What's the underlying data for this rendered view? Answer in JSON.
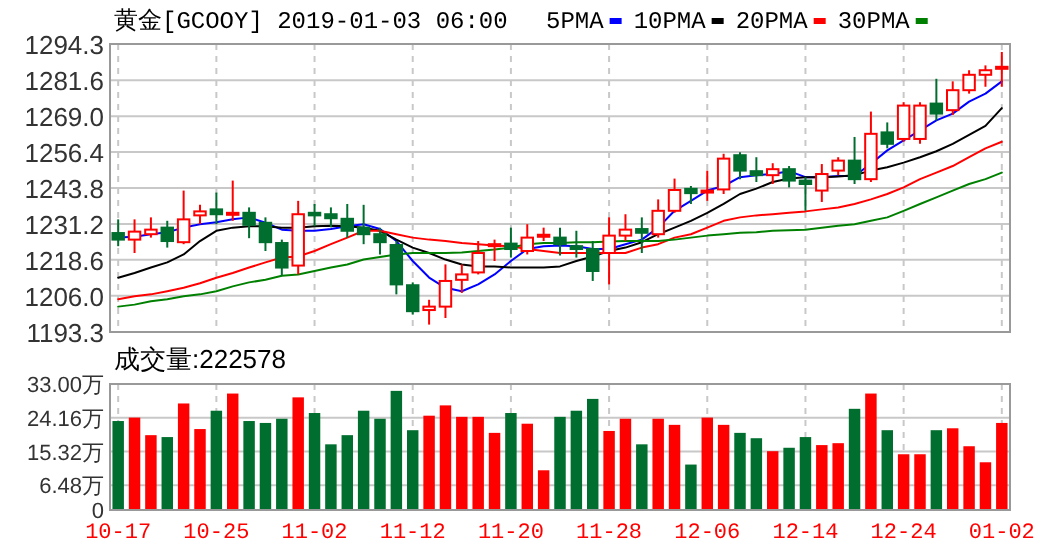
{
  "chart_data": [
    {
      "type": "candlestick",
      "title": "黄金[GCOOY] 2019-01-03 06:00",
      "legend": "top",
      "grid": true,
      "tick_labels": "y",
      "categories": [
        null,
        null,
        null,
        null,
        null,
        null,
        null,
        null,
        null,
        null,
        null,
        null,
        null,
        null,
        null,
        null,
        null,
        null,
        null,
        null,
        null,
        null,
        null,
        null,
        null,
        null,
        null,
        null,
        null,
        null,
        null,
        null,
        null,
        null,
        null,
        null,
        null,
        null,
        null,
        null,
        null,
        null,
        null,
        null,
        null,
        null,
        null,
        null,
        null,
        null,
        null,
        null,
        null,
        null,
        null
      ],
      "ohlc": [
        [
          1228.0,
          1232.8,
          1223.4,
          1225.7
        ],
        [
          1225.7,
          1232.8,
          1221.0,
          1228.5
        ],
        [
          1227.6,
          1233.5,
          1226.4,
          1229.2
        ],
        [
          1229.9,
          1232.3,
          1222.9,
          1225.2
        ],
        [
          1224.8,
          1242.9,
          1224.1,
          1232.8
        ],
        [
          1234.2,
          1237.9,
          1231.1,
          1235.6
        ],
        [
          1236.3,
          1242.2,
          1231.1,
          1234.6
        ],
        [
          1234.6,
          1246.4,
          1232.3,
          1235.1
        ],
        [
          1235.1,
          1237.0,
          1226.2,
          1230.9
        ],
        [
          1231.6,
          1233.5,
          1221.7,
          1224.8
        ],
        [
          1224.5,
          1225.7,
          1213.0,
          1215.9
        ],
        [
          1216.6,
          1239.3,
          1213.5,
          1234.6
        ],
        [
          1235.1,
          1238.2,
          1230.4,
          1234.2
        ],
        [
          1234.6,
          1237.0,
          1230.0,
          1233.2
        ],
        [
          1233.0,
          1238.2,
          1226.4,
          1228.8
        ],
        [
          1229.9,
          1237.9,
          1224.1,
          1227.6
        ],
        [
          1227.6,
          1229.9,
          1220.5,
          1224.8
        ],
        [
          1223.8,
          1225.2,
          1206.5,
          1210.0
        ],
        [
          1209.7,
          1210.7,
          1199.4,
          1200.6
        ],
        [
          1201.0,
          1204.6,
          1195.9,
          1202.2
        ],
        [
          1202.2,
          1217.0,
          1198.2,
          1211.2
        ],
        [
          1211.6,
          1217.0,
          1207.0,
          1213.5
        ],
        [
          1214.2,
          1225.2,
          1213.5,
          1221.0
        ],
        [
          1223.4,
          1225.7,
          1218.2,
          1224.1
        ],
        [
          1224.3,
          1229.9,
          1219.4,
          1222.4
        ],
        [
          1221.7,
          1231.1,
          1220.5,
          1226.4
        ],
        [
          1226.9,
          1229.9,
          1225.2,
          1227.4
        ],
        [
          1226.4,
          1229.9,
          1220.1,
          1224.1
        ],
        [
          1223.4,
          1228.8,
          1219.4,
          1222.4
        ],
        [
          1222.4,
          1225.2,
          1211.2,
          1214.7
        ],
        [
          1221.0,
          1233.5,
          1210.0,
          1227.1
        ],
        [
          1227.1,
          1234.6,
          1225.2,
          1229.2
        ],
        [
          1229.4,
          1233.5,
          1221.0,
          1228.1
        ],
        [
          1227.6,
          1239.8,
          1226.4,
          1235.8
        ],
        [
          1235.8,
          1247.1,
          1235.1,
          1243.1
        ],
        [
          1243.5,
          1244.5,
          1238.2,
          1242.0
        ],
        [
          1242.4,
          1249.9,
          1239.3,
          1242.9
        ],
        [
          1243.3,
          1255.8,
          1241.7,
          1254.1
        ],
        [
          1255.3,
          1256.3,
          1246.9,
          1249.9
        ],
        [
          1249.7,
          1254.6,
          1245.9,
          1248.3
        ],
        [
          1248.3,
          1252.5,
          1245.2,
          1250.4
        ],
        [
          1250.4,
          1251.5,
          1244.0,
          1246.4
        ],
        [
          1246.4,
          1247.6,
          1235.8,
          1245.2
        ],
        [
          1242.9,
          1252.2,
          1238.9,
          1248.7
        ],
        [
          1249.9,
          1254.6,
          1248.3,
          1253.4
        ],
        [
          1253.4,
          1261.7,
          1245.2,
          1246.9
        ],
        [
          1246.9,
          1270.6,
          1245.9,
          1262.8
        ],
        [
          1263.3,
          1266.8,
          1257.7,
          1259.3
        ],
        [
          1261.0,
          1273.9,
          1260.0,
          1272.7
        ],
        [
          1261.0,
          1273.9,
          1259.3,
          1272.7
        ],
        [
          1273.4,
          1282.1,
          1267.5,
          1269.9
        ],
        [
          1271.1,
          1281.2,
          1269.4,
          1278.1
        ],
        [
          1278.1,
          1285.1,
          1276.9,
          1283.5
        ],
        [
          1283.5,
          1286.8,
          1279.3,
          1285.1
        ],
        [
          1285.6,
          1291.5,
          1279.3,
          1286.3
        ]
      ],
      "series": [
        {
          "type": "line",
          "name": "5PMA",
          "color": "#0000ff",
          "values": [
            1226.4,
            1226.7,
            1227.6,
            1228.3,
            1229.9,
            1231.1,
            1231.8,
            1232.8,
            1233.5,
            1231.6,
            1229.2,
            1228.8,
            1228.8,
            1229.4,
            1230.4,
            1231.1,
            1229.4,
            1225.2,
            1218.2,
            1212.4,
            1208.8,
            1207.6,
            1210.0,
            1213.5,
            1218.2,
            1222.4,
            1223.4,
            1223.6,
            1223.4,
            1222.4,
            1222.4,
            1224.1,
            1225.7,
            1229.9,
            1235.8,
            1239.3,
            1242.9,
            1244.5,
            1247.6,
            1248.3,
            1248.7,
            1249.7,
            1247.6,
            1247.6,
            1248.0,
            1248.0,
            1252.3,
            1257.0,
            1260.5,
            1264.0,
            1267.5,
            1269.9,
            1274.1,
            1276.9,
            1281.2
          ]
        },
        {
          "type": "line",
          "name": "10PMA",
          "color": "#000000",
          "values": [
            1212.3,
            1214.0,
            1215.9,
            1217.7,
            1220.5,
            1225.2,
            1228.8,
            1229.9,
            1230.4,
            1230.4,
            1229.9,
            1229.9,
            1230.4,
            1230.6,
            1230.4,
            1229.9,
            1228.8,
            1225.7,
            1222.9,
            1221.0,
            1218.7,
            1217.0,
            1216.3,
            1216.3,
            1215.9,
            1215.9,
            1215.9,
            1216.3,
            1218.2,
            1219.8,
            1221.7,
            1222.9,
            1224.8,
            1227.6,
            1229.9,
            1232.3,
            1235.1,
            1238.2,
            1241.7,
            1243.6,
            1245.9,
            1247.1,
            1247.6,
            1247.6,
            1247.8,
            1248.3,
            1249.9,
            1251.1,
            1252.7,
            1254.6,
            1256.7,
            1259.3,
            1262.4,
            1265.6,
            1271.8
          ]
        },
        {
          "type": "line",
          "name": "20PMA",
          "color": "#ff0000",
          "values": [
            1204.8,
            1205.8,
            1206.5,
            1207.6,
            1208.8,
            1210.4,
            1212.3,
            1214.0,
            1215.9,
            1217.7,
            1219.4,
            1219.8,
            1221.7,
            1224.1,
            1226.4,
            1228.8,
            1228.8,
            1227.6,
            1226.4,
            1225.7,
            1225.2,
            1224.5,
            1224.1,
            1223.6,
            1223.4,
            1222.4,
            1221.7,
            1221.0,
            1221.0,
            1221.0,
            1221.0,
            1221.0,
            1222.9,
            1224.1,
            1226.4,
            1227.6,
            1229.9,
            1232.3,
            1233.5,
            1234.2,
            1234.6,
            1235.1,
            1235.6,
            1236.3,
            1237.0,
            1238.2,
            1239.8,
            1241.7,
            1244.0,
            1246.9,
            1249.2,
            1251.5,
            1254.6,
            1257.7,
            1260.0
          ]
        },
        {
          "type": "line",
          "name": "30PMA",
          "color": "#008000",
          "values": [
            1202.2,
            1202.9,
            1204.1,
            1204.8,
            1205.8,
            1206.5,
            1207.6,
            1209.3,
            1210.7,
            1211.6,
            1213.0,
            1213.5,
            1214.7,
            1215.9,
            1217.0,
            1218.7,
            1219.6,
            1220.5,
            1221.0,
            1221.0,
            1221.0,
            1221.2,
            1221.7,
            1222.2,
            1222.9,
            1224.1,
            1224.5,
            1224.5,
            1224.8,
            1224.8,
            1225.0,
            1225.2,
            1225.2,
            1225.2,
            1225.7,
            1226.4,
            1227.1,
            1227.6,
            1228.1,
            1228.3,
            1228.8,
            1229.0,
            1229.2,
            1229.9,
            1230.6,
            1231.1,
            1232.3,
            1233.5,
            1235.8,
            1238.2,
            1240.5,
            1242.9,
            1245.2,
            1246.9,
            1249.2
          ]
        }
      ],
      "ylim": [
        1193.3,
        1294.3
      ],
      "yticks": [
        {
          "value": 1193.3,
          "label": "1193.3"
        },
        {
          "value": 1206.0,
          "label": "1206.0"
        },
        {
          "value": 1218.6,
          "label": "1218.6"
        },
        {
          "value": 1231.2,
          "label": "1231.2"
        },
        {
          "value": 1243.8,
          "label": "1243.8"
        },
        {
          "value": 1256.4,
          "label": "1256.4"
        },
        {
          "value": 1269.0,
          "label": "1269.0"
        },
        {
          "value": 1281.6,
          "label": "1281.6"
        },
        {
          "value": 1294.3,
          "label": "1294.3"
        }
      ]
    },
    {
      "type": "bar",
      "title": "成交量:222578",
      "grid": true,
      "categories": [
        "10-17",
        null,
        null,
        null,
        null,
        null,
        "10-25",
        null,
        null,
        null,
        null,
        null,
        "11-02",
        null,
        null,
        null,
        null,
        null,
        "11-12",
        null,
        null,
        null,
        null,
        null,
        "11-20",
        null,
        null,
        null,
        null,
        null,
        "11-28",
        null,
        null,
        null,
        null,
        null,
        "12-06",
        null,
        null,
        null,
        null,
        null,
        "12-14",
        null,
        null,
        null,
        null,
        null,
        "12-24",
        null,
        null,
        null,
        null,
        null,
        "01-02"
      ],
      "values": [
        23.3,
        24.2,
        19.6,
        19.1,
        27.9,
        21.2,
        26.0,
        30.5,
        23.3,
        22.8,
        23.9,
        29.5,
        25.4,
        17.2,
        19.6,
        26.0,
        23.9,
        31.2,
        20.9,
        24.7,
        27.4,
        24.4,
        24.4,
        20.2,
        25.4,
        22.6,
        10.4,
        24.4,
        26.0,
        29.1,
        20.7,
        23.9,
        17.2,
        23.9,
        22.3,
        11.9,
        24.2,
        22.3,
        20.2,
        18.8,
        15.4,
        16.3,
        19.1,
        17.0,
        17.5,
        26.5,
        30.5,
        20.9,
        14.6,
        14.6,
        20.9,
        21.4,
        16.7,
        12.5,
        22.8
      ],
      "colors": [
        "#006e2e",
        "#ff0000",
        "#ff0000",
        "#006e2e",
        "#ff0000",
        "#ff0000",
        "#006e2e",
        "#ff0000",
        "#006e2e",
        "#006e2e",
        "#006e2e",
        "#ff0000",
        "#006e2e",
        "#006e2e",
        "#006e2e",
        "#006e2e",
        "#006e2e",
        "#006e2e",
        "#006e2e",
        "#ff0000",
        "#ff0000",
        "#ff0000",
        "#ff0000",
        "#ff0000",
        "#006e2e",
        "#ff0000",
        "#ff0000",
        "#006e2e",
        "#006e2e",
        "#006e2e",
        "#ff0000",
        "#ff0000",
        "#006e2e",
        "#ff0000",
        "#ff0000",
        "#006e2e",
        "#ff0000",
        "#ff0000",
        "#006e2e",
        "#006e2e",
        "#ff0000",
        "#006e2e",
        "#006e2e",
        "#ff0000",
        "#ff0000",
        "#006e2e",
        "#ff0000",
        "#006e2e",
        "#ff0000",
        "#ff0000",
        "#006e2e",
        "#ff0000",
        "#ff0000",
        "#ff0000",
        "#ff0000"
      ],
      "ylim": [
        0,
        33
      ],
      "yticks": [
        {
          "value": 0,
          "label": "0"
        },
        {
          "value": 6.48,
          "label": "6.48万"
        },
        {
          "value": 15.32,
          "label": "15.32万"
        },
        {
          "value": 24.16,
          "label": "24.16万"
        },
        {
          "value": 33,
          "label": "33.00万"
        }
      ]
    }
  ]
}
